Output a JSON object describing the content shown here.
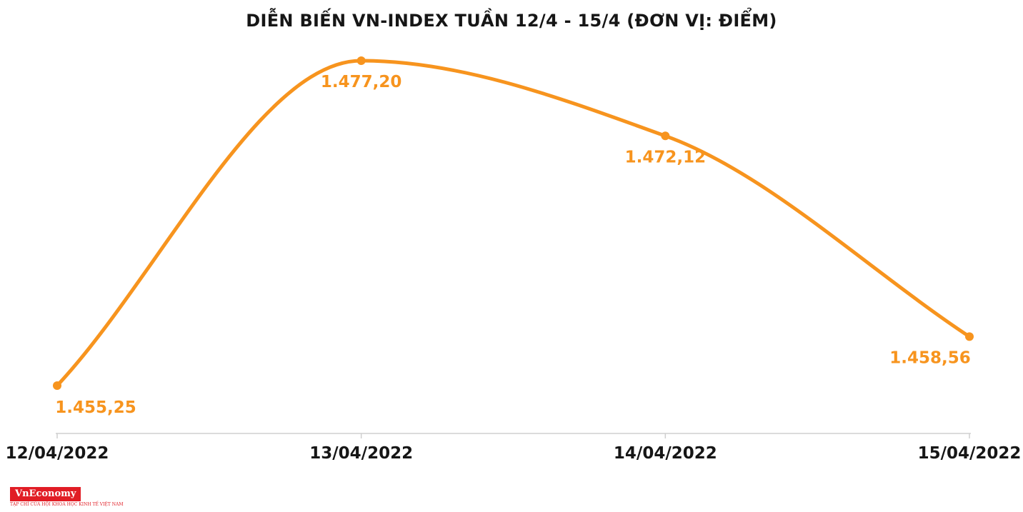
{
  "chart_data": {
    "type": "line",
    "title": "DIỄN BIẾN VN-INDEX TUẦN 12/4 - 15/4 (ĐƠN VỊ: ĐIỂM)",
    "series_name": "VN-Index",
    "categories": [
      "12/04/2022",
      "13/04/2022",
      "14/04/2022",
      "15/04/2022"
    ],
    "values": [
      1455.25,
      1477.2,
      1472.12,
      1458.56
    ],
    "value_labels": [
      "1.455,25",
      "1.477,20",
      "1.472,12",
      "1.458,56"
    ],
    "xlabel": "",
    "ylabel": "",
    "ylim": [
      1450,
      1480
    ],
    "grid": false,
    "legend": "none",
    "line_color": "#F7941E",
    "point_color": "#F7941E",
    "value_label_color": "#F7941E",
    "axis_color": "#CFCFCF",
    "tick_label_color": "#161616"
  },
  "footer": {
    "logo_text": "VnEconomy",
    "logo_tagline": "TẠP CHÍ CỦA HỘI KHOA HỌC KINH TẾ VIỆT NAM",
    "logo_bg": "#E11D25",
    "logo_fg": "#FFFFFF"
  }
}
